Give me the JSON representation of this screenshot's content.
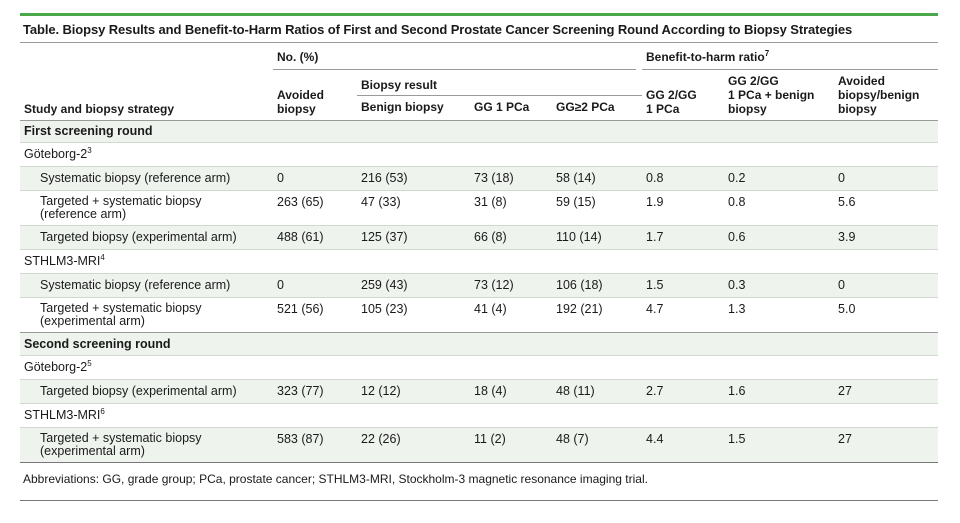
{
  "caption": "Table. Biopsy Results and Benefit-to-Harm Ratios of First and Second Prostate Cancer Screening Round According to Biopsy Strategies",
  "header": {
    "study_col": "Study and biopsy strategy",
    "no_pct": "No. (%)",
    "avoided": [
      "Avoided",
      "biopsy"
    ],
    "biopsy_result": "Biopsy result",
    "benign": "Benign biopsy",
    "gg1": "GG 1 PCa",
    "gg2": "GG≥2 PCa",
    "bh_ratio": "Benefit-to-harm ratio",
    "bh_sup": "7",
    "r1": [
      "GG 2/GG",
      "1 PCa"
    ],
    "r2": [
      "GG 2/GG",
      "1 PCa + benign",
      "biopsy"
    ],
    "r3": [
      "Avoided",
      "biopsy/benign",
      "biopsy"
    ]
  },
  "sections": {
    "first": "First screening round",
    "second": "Second screening round"
  },
  "studies": {
    "g2_first": {
      "name": "Göteborg-2",
      "sup": "3"
    },
    "sthlm_first": {
      "name": "STHLM3-MRI",
      "sup": "4"
    },
    "g2_second": {
      "name": "Göteborg-2",
      "sup": "5"
    },
    "sthlm_second": {
      "name": "STHLM3-MRI",
      "sup": "6"
    }
  },
  "rows": [
    {
      "strategy": [
        "Systematic biopsy (reference arm)"
      ],
      "avoided": "0",
      "benign": "216 (53)",
      "gg1": "73 (18)",
      "gg2": "58 (14)",
      "r1": "0.8",
      "r2": "0.2",
      "r3": "0"
    },
    {
      "strategy": [
        "Targeted + systematic biopsy",
        "(reference arm)"
      ],
      "avoided": "263 (65)",
      "benign": "47 (33)",
      "gg1": "31 (8)",
      "gg2": "59 (15)",
      "r1": "1.9",
      "r2": "0.8",
      "r3": "5.6"
    },
    {
      "strategy": [
        "Targeted biopsy (experimental arm)"
      ],
      "avoided": "488 (61)",
      "benign": "125 (37)",
      "gg1": "66 (8)",
      "gg2": "110 (14)",
      "r1": "1.7",
      "r2": "0.6",
      "r3": "3.9"
    },
    {
      "strategy": [
        "Systematic biopsy (reference arm)"
      ],
      "avoided": "0",
      "benign": "259 (43)",
      "gg1": "73 (12)",
      "gg2": "106 (18)",
      "r1": "1.5",
      "r2": "0.3",
      "r3": "0"
    },
    {
      "strategy": [
        "Targeted + systematic biopsy",
        "(experimental arm)"
      ],
      "avoided": "521 (56)",
      "benign": "105 (23)",
      "gg1": "41 (4)",
      "gg2": "192 (21)",
      "r1": "4.7",
      "r2": "1.3",
      "r3": "5.0"
    },
    {
      "strategy": [
        "Targeted biopsy (experimental arm)"
      ],
      "avoided": "323 (77)",
      "benign": "12 (12)",
      "gg1": "18 (4)",
      "gg2": "48 (11)",
      "r1": "2.7",
      "r2": "1.6",
      "r3": "27"
    },
    {
      "strategy": [
        "Targeted + systematic biopsy",
        "(experimental arm)"
      ],
      "avoided": "583 (87)",
      "benign": "22 (26)",
      "gg1": "11 (2)",
      "gg2": "48 (7)",
      "r1": "4.4",
      "r2": "1.5",
      "r3": "27"
    }
  ],
  "footnote": "Abbreviations: GG, grade group; PCa, prostate cancer; STHLM3-MRI, Stockholm-3 magnetic resonance imaging trial.",
  "colors": {
    "accent": "#4aa84a",
    "shade": "#eef3ee"
  }
}
